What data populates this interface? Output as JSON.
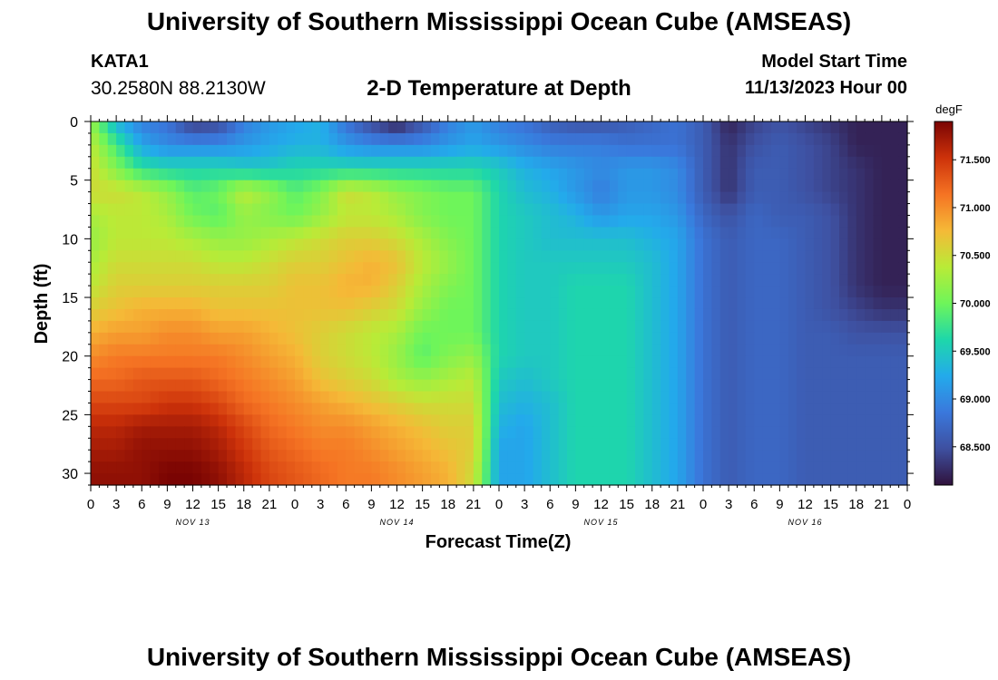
{
  "header": {
    "title": "University of Southern Mississippi Ocean Cube (AMSEAS)",
    "station": "KATA1",
    "coordinates": "30.2580N  88.2130W",
    "subtitle": "2-D Temperature at Depth",
    "start_label": "Model Start Time",
    "start_value": "11/13/2023 Hour 00"
  },
  "footer": {
    "title": "University of Southern Mississippi Ocean Cube (AMSEAS)"
  },
  "chart_data": {
    "type": "heatmap",
    "title": "2-D Temperature at Depth",
    "xlabel": "Forecast Time(Z)",
    "ylabel": "Depth (ft)",
    "xlim": [
      0,
      96
    ],
    "ylim": [
      31,
      0
    ],
    "x_ticks": [
      0,
      3,
      6,
      9,
      12,
      15,
      18,
      21,
      24,
      27,
      30,
      33,
      36,
      39,
      42,
      45,
      48,
      51,
      54,
      57,
      60,
      63,
      66,
      69,
      72,
      75,
      78,
      81,
      84,
      87,
      90,
      93,
      96
    ],
    "x_tick_labels": [
      "0",
      "3",
      "6",
      "9",
      "12",
      "15",
      "18",
      "21",
      "0",
      "3",
      "6",
      "9",
      "12",
      "15",
      "18",
      "21",
      "0",
      "3",
      "6",
      "9",
      "12",
      "15",
      "18",
      "21",
      "0",
      "3",
      "6",
      "9",
      "12",
      "15",
      "18",
      "21",
      "0"
    ],
    "date_labels": [
      {
        "x": 12,
        "label": "NOV 13"
      },
      {
        "x": 36,
        "label": "NOV 14"
      },
      {
        "x": 60,
        "label": "NOV 15"
      },
      {
        "x": 84,
        "label": "NOV 16"
      }
    ],
    "y_ticks": [
      0,
      5,
      10,
      15,
      20,
      25,
      30
    ],
    "colorbar": {
      "unit": "degF",
      "min": 68.1,
      "max": 71.9,
      "ticks": [
        71.5,
        71.0,
        70.5,
        70.0,
        69.5,
        69.0,
        68.5
      ],
      "tick_labels": [
        "71.500",
        "71.000",
        "70.500",
        "70.000",
        "69.500",
        "69.000",
        "68.500"
      ]
    },
    "depths_ft": [
      0,
      2,
      4,
      6,
      8,
      10,
      12,
      14,
      16,
      18,
      20,
      22,
      24,
      26,
      28,
      30
    ],
    "times_h": [
      0,
      3,
      6,
      9,
      12,
      15,
      18,
      21,
      24,
      27,
      30,
      33,
      36,
      39,
      42,
      45,
      48,
      51,
      54,
      57,
      60,
      63,
      66,
      69,
      72,
      75,
      78,
      81,
      84,
      87,
      90,
      93,
      96
    ],
    "temperature_degF": [
      [
        70.2,
        69.3,
        68.9,
        68.8,
        68.3,
        68.4,
        68.9,
        69.1,
        69.2,
        69.3,
        68.8,
        68.4,
        68.1,
        68.5,
        68.9,
        69.1,
        68.9,
        68.8,
        68.6,
        68.5,
        68.5,
        68.6,
        68.7,
        68.8,
        68.6,
        68.2,
        68.4,
        68.5,
        68.4,
        68.3,
        68.2,
        68.2,
        68.2
      ],
      [
        70.4,
        69.8,
        69.2,
        69.0,
        69.0,
        69.0,
        69.1,
        69.2,
        69.3,
        69.3,
        69.1,
        69.0,
        69.0,
        69.0,
        69.1,
        69.2,
        69.1,
        69.0,
        68.9,
        68.9,
        68.9,
        68.8,
        68.8,
        68.8,
        68.6,
        68.3,
        68.5,
        68.6,
        68.5,
        68.4,
        68.2,
        68.2,
        68.2
      ],
      [
        70.5,
        70.1,
        69.7,
        69.6,
        69.6,
        69.6,
        69.5,
        69.5,
        69.6,
        69.6,
        69.6,
        69.6,
        69.6,
        69.6,
        69.6,
        69.6,
        69.5,
        69.3,
        69.2,
        69.1,
        69.0,
        69.1,
        69.1,
        69.0,
        68.6,
        68.3,
        68.6,
        68.6,
        68.5,
        68.4,
        68.3,
        68.2,
        68.2
      ],
      [
        70.5,
        70.5,
        70.4,
        70.2,
        69.9,
        70.0,
        70.4,
        70.2,
        69.9,
        70.1,
        70.5,
        70.4,
        70.2,
        70.1,
        70.0,
        70.0,
        69.6,
        69.4,
        69.3,
        69.1,
        68.9,
        69.1,
        69.1,
        69.0,
        68.6,
        68.3,
        68.6,
        68.6,
        68.5,
        68.4,
        68.3,
        68.2,
        68.2
      ],
      [
        70.3,
        70.4,
        70.4,
        70.3,
        70.0,
        69.9,
        70.2,
        70.1,
        70.0,
        70.2,
        70.4,
        70.4,
        70.3,
        70.1,
        70.0,
        70.0,
        69.6,
        69.5,
        69.4,
        69.3,
        69.1,
        69.2,
        69.2,
        69.1,
        68.7,
        68.5,
        68.7,
        68.6,
        68.6,
        68.5,
        68.3,
        68.2,
        68.2
      ],
      [
        70.2,
        70.4,
        70.4,
        70.4,
        70.3,
        70.2,
        70.2,
        70.3,
        70.4,
        70.5,
        70.6,
        70.6,
        70.5,
        70.3,
        70.1,
        70.0,
        69.6,
        69.5,
        69.4,
        69.4,
        69.4,
        69.4,
        69.3,
        69.2,
        68.8,
        68.6,
        68.7,
        68.7,
        68.6,
        68.5,
        68.3,
        68.2,
        68.2
      ],
      [
        70.3,
        70.5,
        70.5,
        70.5,
        70.5,
        70.4,
        70.4,
        70.5,
        70.6,
        70.6,
        70.7,
        70.8,
        70.7,
        70.4,
        70.2,
        70.0,
        69.6,
        69.5,
        69.5,
        69.5,
        69.5,
        69.5,
        69.4,
        69.2,
        68.8,
        68.6,
        68.7,
        68.7,
        68.6,
        68.5,
        68.3,
        68.2,
        68.2
      ],
      [
        70.4,
        70.6,
        70.6,
        70.6,
        70.6,
        70.6,
        70.6,
        70.6,
        70.7,
        70.7,
        70.8,
        70.8,
        70.6,
        70.3,
        70.1,
        70.0,
        69.6,
        69.5,
        69.5,
        69.6,
        69.6,
        69.6,
        69.4,
        69.2,
        68.8,
        68.6,
        68.7,
        68.7,
        68.6,
        68.5,
        68.3,
        68.2,
        68.2
      ],
      [
        70.6,
        70.7,
        70.8,
        70.8,
        70.8,
        70.7,
        70.7,
        70.7,
        70.7,
        70.7,
        70.7,
        70.6,
        70.5,
        70.2,
        70.0,
        70.0,
        69.6,
        69.5,
        69.5,
        69.6,
        69.6,
        69.6,
        69.4,
        69.2,
        68.8,
        68.6,
        68.7,
        68.7,
        68.6,
        68.5,
        68.4,
        68.3,
        68.3
      ],
      [
        70.8,
        70.9,
        70.9,
        71.0,
        71.0,
        70.9,
        70.9,
        70.8,
        70.7,
        70.6,
        70.5,
        70.4,
        70.3,
        70.0,
        70.0,
        70.0,
        69.6,
        69.5,
        69.5,
        69.6,
        69.6,
        69.6,
        69.4,
        69.2,
        68.8,
        68.6,
        68.7,
        68.7,
        68.6,
        68.6,
        68.5,
        68.5,
        68.5
      ],
      [
        71.0,
        71.1,
        71.1,
        71.1,
        71.1,
        71.1,
        71.0,
        70.9,
        70.8,
        70.6,
        70.5,
        70.4,
        70.2,
        69.9,
        70.1,
        70.2,
        69.6,
        69.5,
        69.5,
        69.6,
        69.6,
        69.6,
        69.4,
        69.2,
        68.8,
        68.6,
        68.7,
        68.7,
        68.6,
        68.6,
        68.6,
        68.6,
        68.6
      ],
      [
        71.2,
        71.2,
        71.3,
        71.3,
        71.3,
        71.2,
        71.1,
        71.0,
        70.9,
        70.7,
        70.6,
        70.5,
        70.3,
        70.2,
        70.3,
        70.4,
        69.5,
        69.4,
        69.5,
        69.6,
        69.6,
        69.6,
        69.4,
        69.2,
        68.8,
        68.6,
        68.7,
        68.7,
        68.6,
        68.6,
        68.6,
        68.6,
        68.6
      ],
      [
        71.4,
        71.4,
        71.4,
        71.5,
        71.5,
        71.4,
        71.2,
        71.1,
        71.0,
        70.9,
        70.8,
        70.7,
        70.6,
        70.5,
        70.5,
        70.5,
        69.4,
        69.3,
        69.4,
        69.6,
        69.6,
        69.6,
        69.4,
        69.2,
        68.8,
        68.6,
        68.7,
        68.7,
        68.6,
        68.6,
        68.6,
        68.6,
        68.6
      ],
      [
        71.6,
        71.6,
        71.7,
        71.7,
        71.7,
        71.6,
        71.4,
        71.2,
        71.1,
        71.0,
        71.0,
        70.9,
        70.8,
        70.7,
        70.6,
        70.6,
        69.3,
        69.2,
        69.4,
        69.6,
        69.6,
        69.6,
        69.4,
        69.2,
        68.8,
        68.6,
        68.7,
        68.7,
        68.6,
        68.6,
        68.6,
        68.6,
        68.6
      ],
      [
        71.7,
        71.7,
        71.8,
        71.8,
        71.8,
        71.7,
        71.5,
        71.3,
        71.2,
        71.1,
        71.1,
        71.0,
        70.9,
        70.8,
        70.7,
        70.6,
        69.2,
        69.2,
        69.4,
        69.6,
        69.6,
        69.6,
        69.4,
        69.2,
        68.8,
        68.6,
        68.7,
        68.7,
        68.6,
        68.6,
        68.6,
        68.6,
        68.6
      ],
      [
        71.8,
        71.8,
        71.8,
        71.9,
        71.9,
        71.8,
        71.6,
        71.4,
        71.3,
        71.2,
        71.1,
        71.1,
        71.0,
        70.9,
        70.8,
        70.5,
        69.2,
        69.2,
        69.4,
        69.6,
        69.6,
        69.6,
        69.4,
        69.2,
        68.8,
        68.6,
        68.7,
        68.7,
        68.6,
        68.6,
        68.6,
        68.6,
        68.6
      ]
    ]
  }
}
